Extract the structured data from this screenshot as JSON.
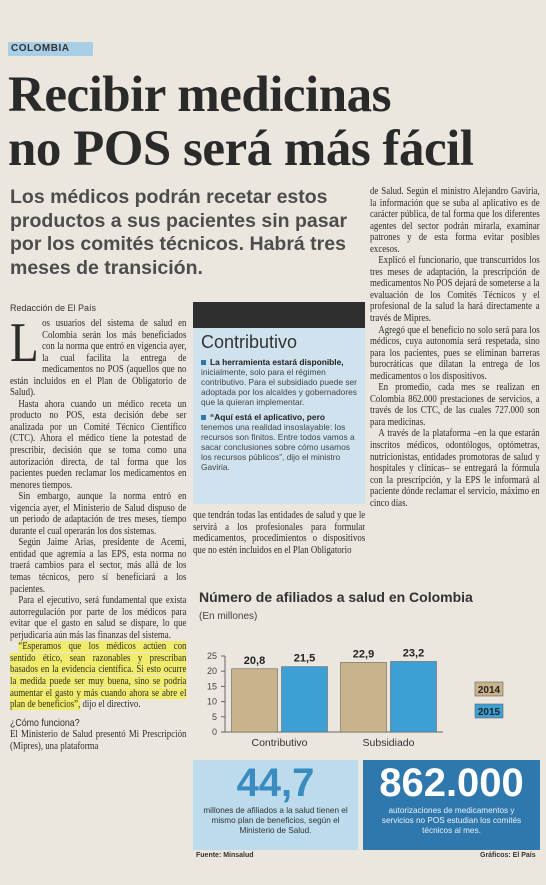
{
  "section": "COLOMBIA",
  "headline": [
    "Recibir medicinas",
    "no POS será más fácil"
  ],
  "deck": "Los médicos podrán recetar estos productos a sus pacientes sin pasar por los comités técnicos. Habrá tres meses de transición.",
  "byline": "Redacción de El País",
  "lead": {
    "dropcap": "L",
    "text": "os usuarios del sistema de salud en Colombia serán los más beneficiados con la norma que entró en vigencia ayer, la cual facilita la entrega de medicamentos no POS (aquellos que no están incluidos en el Plan de Obligatorio de Salud)."
  },
  "left": [
    "Hasta ahora cuando un médico receta un producto no POS, esta decisión debe ser analizada por un Comité Técnico Científico (CTC). Ahora el médico tiene la potestad de prescribir, decisión que se toma como una autorización directa, de tal forma que los pacientes pueden reclamar los medicamentos en menores tiempos.",
    "Sin embargo, aunque la norma entró en vigencia ayer, el Ministerio de Salud dispuso de un periodo de adaptación de tres meses, tiempo durante el cual operarán los dos sistemas.",
    "Según Jaime Arias, presidente de Acemi, entidad que agremia a las EPS, esta norma no traerá cambios para el sector, más allá de los temas técnicos, pero sí beneficiará a los pacientes.",
    "Para el ejecutivo, será fundamental que exista autorregulación por parte de los médicos para evitar que el gasto en salud se dispare, lo que perjudicaría aún más las finanzas del sistema."
  ],
  "quote": {
    "highlight": "“Esperamos que los médicos actúen con sentido ético, sean razonables y prescriban basados en la evidencia científica. Si esto ocurre la medida puede ser muy buena, sino se podría aumentar el gasto y más cuando ahora se abre el plan de beneficios”,",
    "text": " dijo el directivo."
  },
  "subhead": "¿Cómo funciona?",
  "left_end": "El Ministerio de Salud presentó Mi Prescripción (Mipres), una plataforma",
  "center": "que tendrán todas las entidades de salud y que le servirá a los profesionales para formular medicamentos, procedimientos o dispositivos que no estén incluidos en el Plan Obligatorio",
  "right": [
    "de Salud. Según el ministro Alejandro Gaviria, la información que se suba al aplicativo es de carácter pública, de tal forma que los diferentes agentes del sector podrán mirarla, examinar patrones y de esta forma evitar posibles excesos.",
    "Explicó el funcionario, que transcurridos los tres meses de adaptación, la prescripción de medicamentos No POS dejará de someterse a la evaluación de los Comités Técnicos y el profesional de la salud la hará directamente a través de Mipres.",
    "Agregó que el beneficio no solo será para los médicos, cuya autonomía será respetada, sino para los pacientes, pues se eliminan barreras burocráticas que dilatan la entrega de los medicamentos o los dispositivos.",
    "En promedio, cada mes se realizan en Colombia 862.000 prestaciones de servicios, a través de los CTC, de las cuales 727.000 son para medicinas.",
    "A través de la plataforma –en la que estarán inscritos médicos, odontólogos, optómetras, nutricionistas, entidades promotoras de salud y hospitales y clínicas– se entregará la fórmula con la prescripción, y la EPS le informará al paciente dónde reclamar el servicio, máximo en cinco días."
  ],
  "sidebar": {
    "title": "Contributivo",
    "items": [
      {
        "lead": "La herramienta estará disponible,",
        "text": "inicialmente, solo para el régimen contributivo. Para el subsidiado puede ser adoptada por los alcaldes y gobernadores que la quieran implementar."
      },
      {
        "lead": "“Aquí está el aplicativo, pero",
        "text": "tenemos una realidad insoslayable: los recursos son finitos. Entre todos vamos a sacar conclusiones sobre cómo usamos los recursos públicos”, dijo el ministro Gaviria."
      }
    ]
  },
  "chart_data": {
    "type": "bar",
    "title": "Número de afiliados a salud en Colombia",
    "subtitle": "(En millones)",
    "categories": [
      "Contributivo",
      "Subsidiado"
    ],
    "series": [
      {
        "name": "2014",
        "color": "#c9b38b",
        "values": [
          20.8,
          22.9
        ],
        "value_labels": [
          "20,8",
          "22,9"
        ]
      },
      {
        "name": "2015",
        "color": "#3e9fd4",
        "values": [
          21.5,
          23.2
        ],
        "value_labels": [
          "21,5",
          "23,2"
        ]
      }
    ],
    "ylim": [
      0,
      25
    ],
    "yticks": [
      0,
      5,
      10,
      15,
      20,
      25
    ],
    "grid": false,
    "legend": "right"
  },
  "stats": [
    {
      "value": "44,7",
      "caption": "millones de afiliados a la salud tienen el mismo plan de beneficios, según el Ministerio de Salud."
    },
    {
      "value": "862.000",
      "caption": "autorizaciones de medicamentos y servicios no POS estudian los comités técnicos al mes."
    }
  ],
  "source": "Fuente: Minsalud",
  "credit": "Gráficos: El País"
}
